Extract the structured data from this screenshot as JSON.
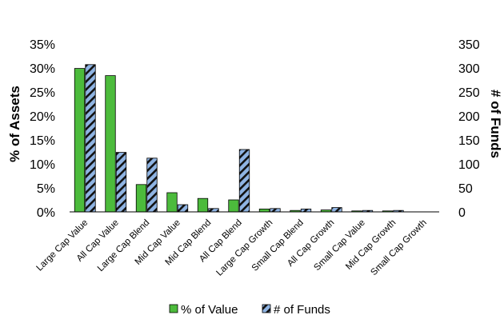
{
  "chart_data": {
    "type": "bar",
    "categories": [
      "Large Cap Value",
      "All Cap Value",
      "Large Cap Blend",
      "Mid Cap Value",
      "Mid Cap Blend",
      "All Cap Blend",
      "Large Cap Growth",
      "Small Cap Blend",
      "All Cap Growth",
      "Small Cap Value",
      "Mid Cap Growth",
      "Small Cap Growth"
    ],
    "series": [
      {
        "name": "% of Value",
        "axis": "left",
        "color": "#4cbb3c",
        "values": [
          29.9,
          28.4,
          5.7,
          4.0,
          2.8,
          2.5,
          0.6,
          0.3,
          0.4,
          0.2,
          0.2,
          0.0
        ]
      },
      {
        "name": "# of Funds",
        "axis": "right",
        "color": "#8fb4e3",
        "pattern": "diagonal-stripes-black",
        "values": [
          307,
          124,
          112,
          15,
          7,
          130,
          7,
          6,
          9,
          3,
          3,
          0
        ]
      }
    ],
    "ylabel": "% of Assets",
    "y2label": "# of Funds",
    "ylim": [
      0,
      35
    ],
    "y2lim": [
      0,
      350
    ],
    "yticks": [
      "0%",
      "5%",
      "10%",
      "15%",
      "20%",
      "25%",
      "30%",
      "35%"
    ],
    "y2ticks": [
      "0",
      "50",
      "100",
      "150",
      "200",
      "250",
      "300",
      "350"
    ],
    "grid": false,
    "legend": "bottom-center"
  }
}
